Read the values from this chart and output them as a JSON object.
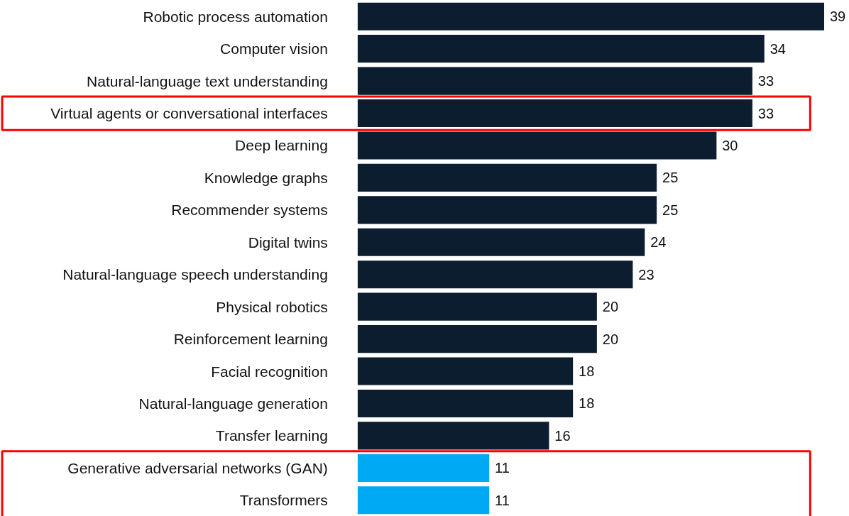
{
  "chart_data": {
    "type": "bar",
    "orientation": "horizontal",
    "data_labels": true,
    "categories": [
      "Robotic process automation",
      "Computer vision",
      "Natural-language text understanding",
      "Virtual agents or conversational interfaces",
      "Deep learning",
      "Knowledge graphs",
      "Recommender systems",
      "Digital twins",
      "Natural-language speech understanding",
      "Physical robotics",
      "Reinforcement learning",
      "Facial recognition",
      "Natural-language generation",
      "Transfer learning",
      "Generative adversarial networks (GAN)",
      "Transformers"
    ],
    "values": [
      39,
      34,
      33,
      33,
      30,
      25,
      25,
      24,
      23,
      20,
      20,
      18,
      18,
      16,
      11,
      11
    ],
    "colors": [
      "#0b1d2e",
      "#0b1d2e",
      "#0b1d2e",
      "#0b1d2e",
      "#0b1d2e",
      "#0b1d2e",
      "#0b1d2e",
      "#0b1d2e",
      "#0b1d2e",
      "#0b1d2e",
      "#0b1d2e",
      "#0b1d2e",
      "#0b1d2e",
      "#0b1d2e",
      "#00a9f4",
      "#00a9f4"
    ]
  }
}
